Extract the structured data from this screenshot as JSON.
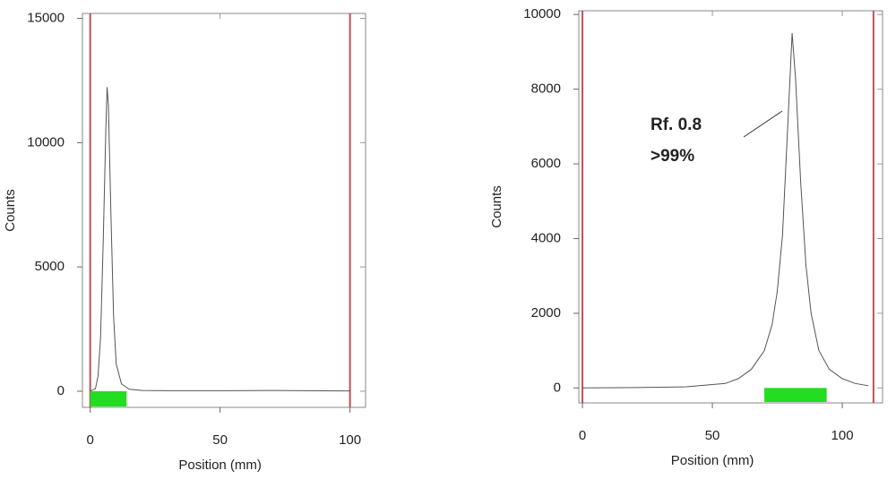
{
  "chart_data": [
    {
      "type": "line",
      "x_label": "Position (mm)",
      "y_label": "Counts",
      "xlim": [
        -3,
        106
      ],
      "ylim": [
        -650,
        15200
      ],
      "xticks": [
        0,
        50,
        100
      ],
      "yticks": [
        0,
        5000,
        10000,
        15000
      ],
      "markers": [
        0,
        100
      ],
      "marker_color": "#c0505a",
      "roi": [
        0,
        14
      ],
      "roi_color": "#22dd22",
      "series": [
        {
          "color": "#555555",
          "x": [
            0,
            2,
            3,
            4,
            5,
            6,
            6.5,
            7,
            8,
            9,
            10,
            12,
            15,
            20,
            30,
            50,
            70,
            100
          ],
          "values": [
            0,
            100,
            600,
            2200,
            6000,
            10500,
            12230,
            11500,
            7000,
            3000,
            1100,
            300,
            80,
            30,
            20,
            20,
            30,
            10
          ]
        }
      ]
    },
    {
      "type": "line",
      "x_label": "Position (mm)",
      "y_label": "Counts",
      "xlim": [
        -1.4,
        115.5
      ],
      "ylim": [
        -400,
        10100
      ],
      "xticks": [
        0,
        50,
        100
      ],
      "yticks": [
        0,
        2000,
        4000,
        6000,
        8000,
        10000
      ],
      "markers": [
        0,
        112
      ],
      "marker_color": "#c0505a",
      "roi": [
        70,
        94
      ],
      "roi_color": "#22dd22",
      "annotations": [
        "Rf. 0.8",
        ">99%"
      ],
      "series": [
        {
          "color": "#555555",
          "x": [
            0,
            20,
            40,
            55,
            60,
            65,
            70,
            73,
            75,
            77,
            79,
            80.7,
            82,
            84,
            86,
            88,
            91,
            95,
            100,
            105,
            110
          ],
          "values": [
            0,
            10,
            30,
            120,
            250,
            500,
            1000,
            1700,
            2600,
            4100,
            7000,
            9500,
            8300,
            5500,
            3300,
            2000,
            1000,
            500,
            250,
            120,
            60
          ]
        }
      ]
    }
  ]
}
